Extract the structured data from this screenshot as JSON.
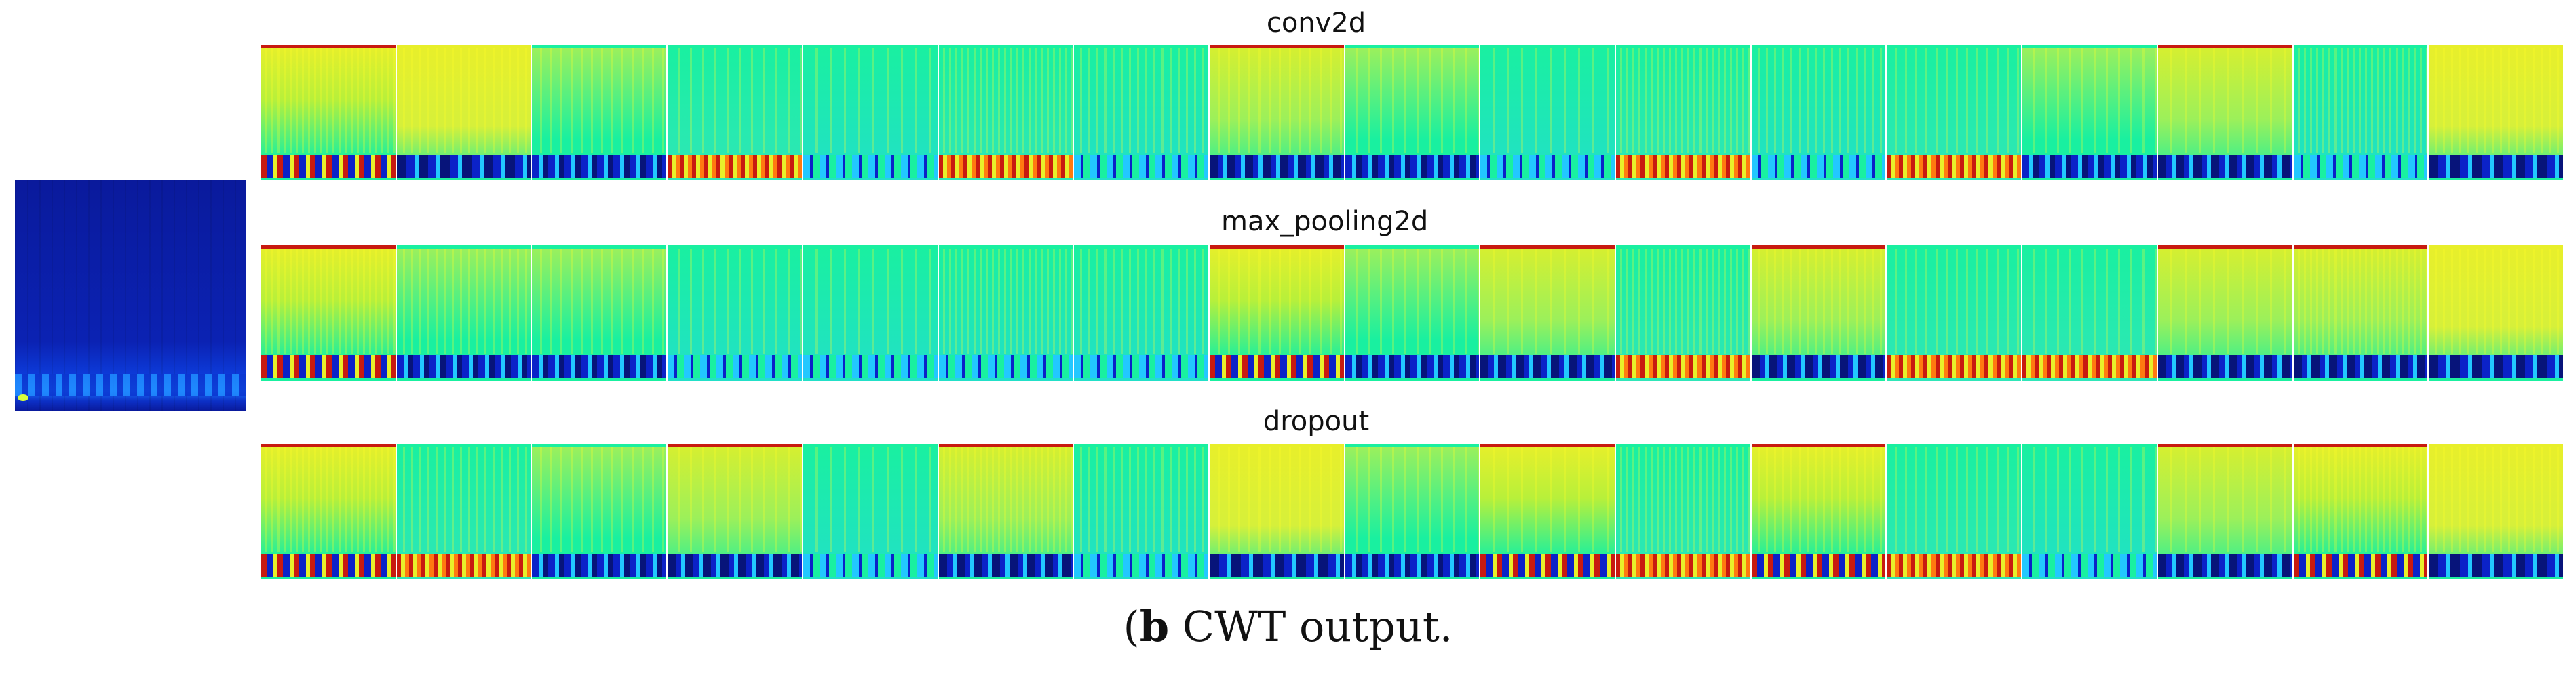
{
  "input_image": {
    "name": "Input CWT scalogram"
  },
  "layers": [
    {
      "title": "conv2d"
    },
    {
      "title": "max_pooling2d"
    },
    {
      "title": "dropout"
    }
  ],
  "caption": {
    "label": "b",
    "text": " CWT output."
  },
  "colors": {
    "green": "#19f0a0",
    "cyan": "#22c8ff",
    "yellow": "#e8ef2a",
    "red": "#c81a10",
    "blue": "#0b22c8",
    "dark_blue": "#07147a"
  }
}
